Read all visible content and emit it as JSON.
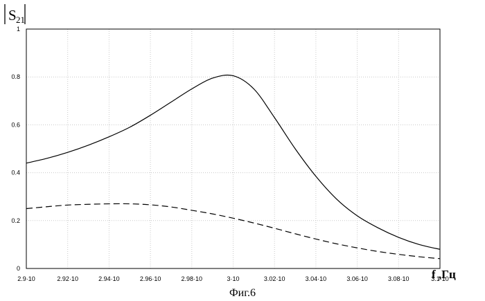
{
  "chart_data": {
    "type": "line",
    "title": "",
    "ylabel": "|S21|",
    "xlabel": "f ,Гц",
    "caption": "Фиг.6",
    "x_ticks": [
      2.9,
      2.92,
      2.94,
      2.96,
      2.98,
      3.0,
      3.02,
      3.04,
      3.06,
      3.08,
      3.1
    ],
    "x_tick_labels": [
      "2.9·10",
      "2.92·10",
      "2.94·10",
      "2.96·10",
      "2.98·10",
      "3·10",
      "3.02·10",
      "3.04·10",
      "3.06·10",
      "3.08·10",
      "3.1·10"
    ],
    "y_ticks": [
      0,
      0.2,
      0.4,
      0.6,
      0.8,
      1
    ],
    "y_tick_labels": [
      "0",
      "0.2",
      "0.4",
      "0.6",
      "0.8",
      "1"
    ],
    "xlim": [
      2.9,
      3.1
    ],
    "ylim": [
      0,
      1
    ],
    "grid": true,
    "series": [
      {
        "style": "solid",
        "x": [
          2.9,
          2.91,
          2.92,
          2.93,
          2.94,
          2.95,
          2.96,
          2.97,
          2.98,
          2.99,
          3.0,
          3.01,
          3.02,
          3.03,
          3.04,
          3.05,
          3.06,
          3.07,
          3.08,
          3.09,
          3.1
        ],
        "y": [
          0.44,
          0.46,
          0.485,
          0.515,
          0.55,
          0.59,
          0.64,
          0.695,
          0.75,
          0.795,
          0.805,
          0.75,
          0.63,
          0.5,
          0.385,
          0.29,
          0.22,
          0.17,
          0.13,
          0.1,
          0.08
        ]
      },
      {
        "style": "dashed",
        "x": [
          2.9,
          2.91,
          2.92,
          2.93,
          2.94,
          2.95,
          2.96,
          2.97,
          2.98,
          2.99,
          3.0,
          3.01,
          3.02,
          3.03,
          3.04,
          3.05,
          3.06,
          3.07,
          3.08,
          3.09,
          3.1
        ],
        "y": [
          0.25,
          0.258,
          0.265,
          0.268,
          0.27,
          0.27,
          0.266,
          0.257,
          0.243,
          0.228,
          0.21,
          0.19,
          0.168,
          0.145,
          0.123,
          0.103,
          0.086,
          0.071,
          0.059,
          0.049,
          0.041
        ]
      }
    ]
  }
}
